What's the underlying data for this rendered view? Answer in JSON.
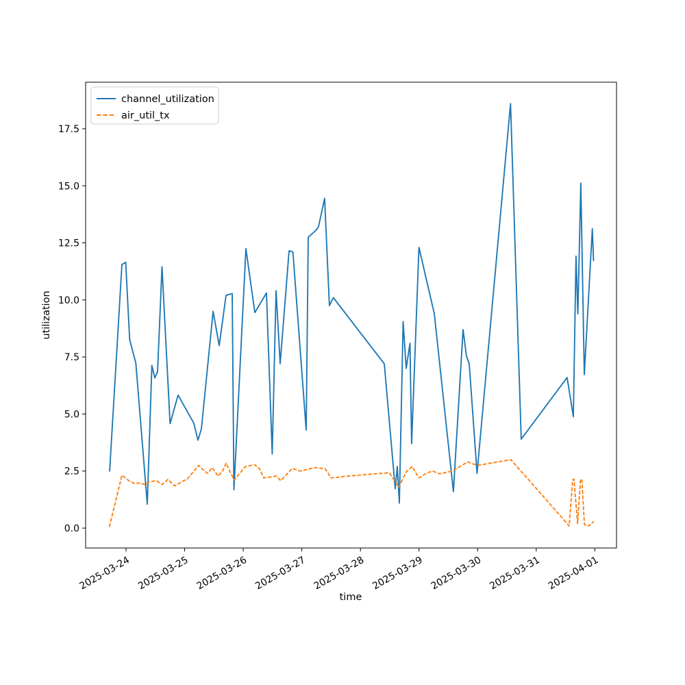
{
  "figure": {
    "background": "#ffffff"
  },
  "chart_data": {
    "type": "line",
    "title": "",
    "xlabel": "time",
    "ylabel": "utilization",
    "grid": false,
    "x_unit": "days since 2025-03-24 00:00",
    "xlim": [
      -0.69,
      8.37
    ],
    "ylim": [
      -0.87,
      19.54
    ],
    "x_ticks": [
      {
        "t": 0,
        "label": "2025-03-24"
      },
      {
        "t": 1,
        "label": "2025-03-25"
      },
      {
        "t": 2,
        "label": "2025-03-26"
      },
      {
        "t": 3,
        "label": "2025-03-27"
      },
      {
        "t": 4,
        "label": "2025-03-28"
      },
      {
        "t": 5,
        "label": "2025-03-29"
      },
      {
        "t": 6,
        "label": "2025-03-30"
      },
      {
        "t": 7,
        "label": "2025-03-31"
      },
      {
        "t": 8,
        "label": "2025-04-01"
      }
    ],
    "y_ticks": [
      {
        "v": 0.0,
        "label": "0.0"
      },
      {
        "v": 2.5,
        "label": "2.5"
      },
      {
        "v": 5.0,
        "label": "5.0"
      },
      {
        "v": 7.5,
        "label": "7.5"
      },
      {
        "v": 10.0,
        "label": "10.0"
      },
      {
        "v": 12.5,
        "label": "12.5"
      },
      {
        "v": 15.0,
        "label": "15.0"
      },
      {
        "v": 17.5,
        "label": "17.5"
      }
    ],
    "legend": {
      "position": "upper-left"
    },
    "series": [
      {
        "name": "channel_utilization",
        "color": "#1f77b4",
        "style": "solid",
        "points": [
          [
            -0.281,
            2.48
          ],
          [
            -0.07,
            11.55
          ],
          [
            -0.006,
            11.65
          ],
          [
            0.062,
            8.26
          ],
          [
            0.167,
            7.23
          ],
          [
            0.362,
            1.05
          ],
          [
            0.441,
            7.13
          ],
          [
            0.491,
            6.58
          ],
          [
            0.538,
            6.85
          ],
          [
            0.614,
            11.45
          ],
          [
            0.752,
            4.58
          ],
          [
            0.888,
            5.83
          ],
          [
            1.157,
            4.6
          ],
          [
            1.227,
            3.85
          ],
          [
            1.286,
            4.35
          ],
          [
            1.485,
            9.5
          ],
          [
            1.59,
            8.0
          ],
          [
            1.707,
            10.2
          ],
          [
            1.812,
            10.28
          ],
          [
            1.841,
            1.68
          ],
          [
            2.045,
            12.25
          ],
          [
            2.197,
            9.45
          ],
          [
            2.396,
            10.3
          ],
          [
            2.495,
            3.25
          ],
          [
            2.56,
            10.4
          ],
          [
            2.63,
            7.2
          ],
          [
            2.782,
            12.15
          ],
          [
            2.847,
            12.1
          ],
          [
            3.074,
            4.3
          ],
          [
            3.109,
            12.75
          ],
          [
            3.243,
            13.05
          ],
          [
            3.284,
            13.2
          ],
          [
            3.389,
            14.45
          ],
          [
            3.471,
            9.75
          ],
          [
            3.537,
            10.1
          ],
          [
            4.407,
            7.2
          ],
          [
            4.594,
            1.72
          ],
          [
            4.629,
            2.7
          ],
          [
            4.664,
            1.1
          ],
          [
            4.728,
            9.05
          ],
          [
            4.781,
            7.0
          ],
          [
            4.845,
            8.1
          ],
          [
            4.874,
            3.7
          ],
          [
            4.998,
            12.3
          ],
          [
            5.26,
            9.4
          ],
          [
            5.587,
            1.6
          ],
          [
            5.751,
            8.7
          ],
          [
            5.809,
            7.55
          ],
          [
            5.856,
            7.2
          ],
          [
            5.99,
            2.4
          ],
          [
            6.561,
            18.6
          ],
          [
            6.744,
            3.9
          ],
          [
            7.527,
            6.6
          ],
          [
            7.633,
            4.88
          ],
          [
            7.679,
            11.92
          ],
          [
            7.711,
            9.39
          ],
          [
            7.761,
            15.12
          ],
          [
            7.82,
            6.73
          ],
          [
            7.957,
            13.12
          ],
          [
            7.978,
            11.7
          ]
        ]
      },
      {
        "name": "air_util_tx",
        "color": "#ff7f0e",
        "style": "dashed",
        "points": [
          [
            -0.286,
            0.05
          ],
          [
            -0.07,
            2.32
          ],
          [
            0.047,
            2.08
          ],
          [
            0.148,
            1.95
          ],
          [
            0.245,
            1.98
          ],
          [
            0.324,
            1.9
          ],
          [
            0.401,
            2.03
          ],
          [
            0.518,
            2.08
          ],
          [
            0.616,
            1.91
          ],
          [
            0.713,
            2.13
          ],
          [
            0.83,
            1.85
          ],
          [
            0.947,
            2.03
          ],
          [
            1.044,
            2.15
          ],
          [
            1.239,
            2.75
          ],
          [
            1.336,
            2.5
          ],
          [
            1.394,
            2.4
          ],
          [
            1.473,
            2.65
          ],
          [
            1.57,
            2.28
          ],
          [
            1.648,
            2.5
          ],
          [
            1.707,
            2.85
          ],
          [
            1.843,
            2.1
          ],
          [
            2.037,
            2.7
          ],
          [
            2.194,
            2.78
          ],
          [
            2.279,
            2.6
          ],
          [
            2.349,
            2.2
          ],
          [
            2.563,
            2.28
          ],
          [
            2.641,
            2.08
          ],
          [
            2.837,
            2.62
          ],
          [
            2.972,
            2.5
          ],
          [
            3.129,
            2.6
          ],
          [
            3.246,
            2.65
          ],
          [
            3.401,
            2.6
          ],
          [
            3.498,
            2.2
          ],
          [
            3.713,
            2.26
          ],
          [
            4.103,
            2.35
          ],
          [
            4.492,
            2.43
          ],
          [
            4.656,
            1.8
          ],
          [
            4.784,
            2.48
          ],
          [
            4.882,
            2.7
          ],
          [
            4.999,
            2.2
          ],
          [
            5.135,
            2.42
          ],
          [
            5.233,
            2.5
          ],
          [
            5.35,
            2.38
          ],
          [
            5.564,
            2.5
          ],
          [
            5.832,
            2.9
          ],
          [
            5.996,
            2.75
          ],
          [
            6.569,
            3.0
          ],
          [
            7.562,
            0.1
          ],
          [
            7.621,
            2.1
          ],
          [
            7.644,
            2.15
          ],
          [
            7.706,
            0.2
          ],
          [
            7.755,
            2.1
          ],
          [
            7.778,
            2.15
          ],
          [
            7.823,
            0.15
          ],
          [
            7.901,
            0.1
          ],
          [
            7.983,
            0.3
          ]
        ]
      }
    ]
  }
}
